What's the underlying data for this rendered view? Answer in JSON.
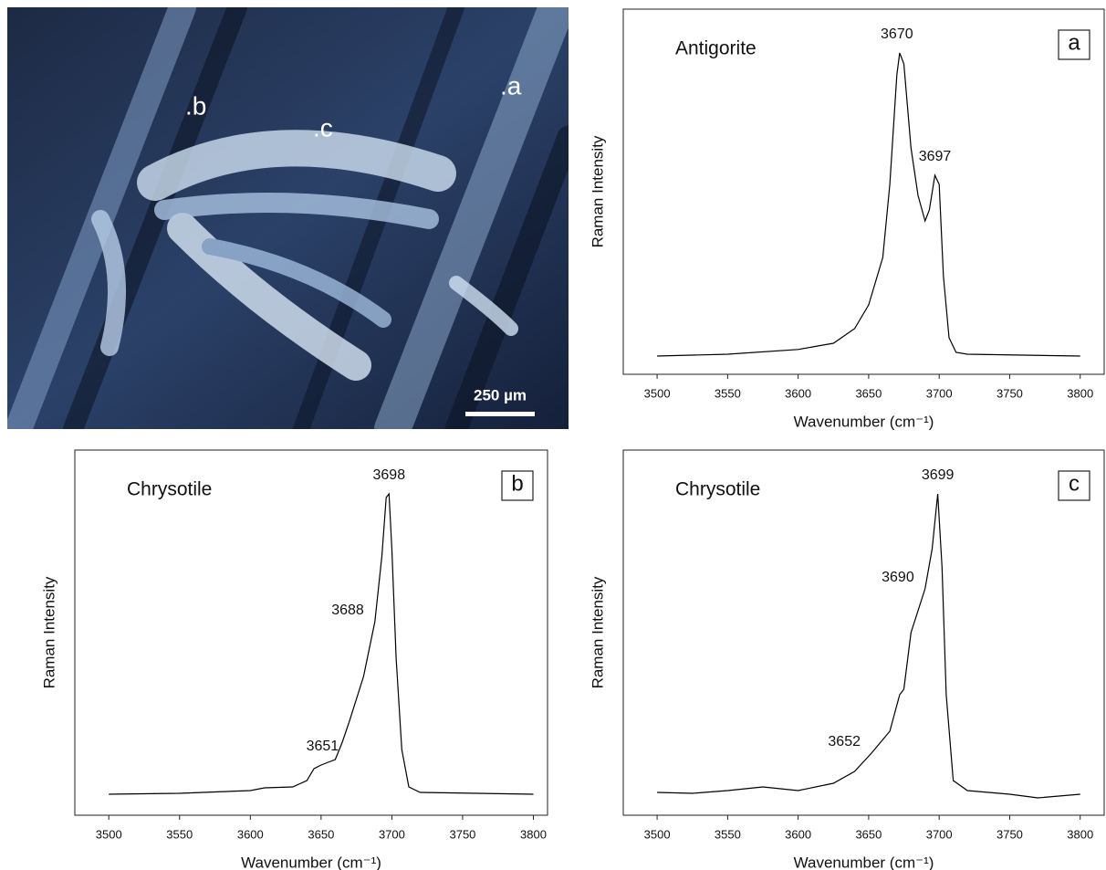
{
  "image": {
    "points": [
      ".a",
      ".b",
      ".c"
    ],
    "scale_bar": "250 µm"
  },
  "chart_data": [
    {
      "type": "line",
      "title": "Antigorite",
      "panel_label": "a",
      "x_label": "Wavenumber (cm⁻¹)",
      "y_label": "Raman Intensity",
      "xlim": [
        3476,
        3817
      ],
      "xticks": [
        3500,
        3550,
        3600,
        3650,
        3700,
        3750,
        3800
      ],
      "ylim": [
        0,
        100
      ],
      "x": [
        3500,
        3550,
        3600,
        3625,
        3640,
        3650,
        3660,
        3665,
        3670,
        3672,
        3675,
        3680,
        3685,
        3690,
        3693,
        3697,
        3700,
        3703,
        3707,
        3712,
        3720,
        3800
      ],
      "series": [
        {
          "color": "#000000",
          "values": [
            5,
            5.5,
            6.8,
            8.5,
            12.5,
            19,
            32,
            52,
            82,
            88,
            85,
            62,
            49,
            42,
            45,
            54.5,
            52,
            27,
            10,
            6,
            5.5,
            5
          ]
        }
      ],
      "annotations": [
        {
          "text": "3670",
          "x": 3670,
          "y": 88,
          "position": "above"
        },
        {
          "text": "3697",
          "x": 3697,
          "y": 54.5,
          "position": "above"
        }
      ]
    },
    {
      "type": "line",
      "title": "Chrysotile",
      "panel_label": "b",
      "x_label": "Wavenumber (cm⁻¹)",
      "y_label": "Raman Intensity",
      "xlim": [
        3476,
        3810
      ],
      "xticks": [
        3500,
        3550,
        3600,
        3650,
        3700,
        3750,
        3800
      ],
      "ylim": [
        0,
        100
      ],
      "x": [
        3500,
        3550,
        3600,
        3610,
        3630,
        3640,
        3645,
        3650,
        3655,
        3660,
        3665,
        3670,
        3680,
        3688,
        3693,
        3696,
        3698,
        3700,
        3703,
        3707,
        3712,
        3720,
        3800
      ],
      "series": [
        {
          "color": "#000000",
          "values": [
            5.75,
            6,
            6.75,
            7.5,
            7.75,
            9.5,
            12.75,
            13.75,
            14.5,
            15.25,
            20,
            25.75,
            38,
            53,
            71,
            87,
            88,
            73,
            43,
            18,
            7.75,
            6.25,
            5.75
          ]
        }
      ],
      "annotations": [
        {
          "text": "3698",
          "x": 3698,
          "y": 88,
          "position": "above"
        },
        {
          "text": "3688",
          "x": 3688,
          "y": 53,
          "position": "left"
        },
        {
          "text": "3651",
          "x": 3651,
          "y": 13.75,
          "position": "above"
        }
      ]
    },
    {
      "type": "line",
      "title": "Chrysotile",
      "panel_label": "c",
      "x_label": "Wavenumber (cm⁻¹)",
      "y_label": "Raman Intensity",
      "xlim": [
        3476,
        3817
      ],
      "xticks": [
        3500,
        3550,
        3600,
        3650,
        3700,
        3750,
        3800
      ],
      "ylim": [
        0,
        100
      ],
      "x": [
        3500,
        3525,
        3550,
        3575,
        3600,
        3625,
        3640,
        3652,
        3665,
        3672,
        3675,
        3680,
        3690,
        3695,
        3699,
        3702,
        3705,
        3710,
        3720,
        3750,
        3770,
        3800
      ],
      "series": [
        {
          "color": "#000000",
          "values": [
            6.25,
            6,
            6.75,
            7.75,
            6.75,
            8.75,
            12,
            17,
            23,
            33,
            34.5,
            50,
            62,
            73,
            88,
            68,
            33,
            9.5,
            6.75,
            5.75,
            4.75,
            5.75
          ]
        }
      ],
      "annotations": [
        {
          "text": "3699",
          "x": 3699,
          "y": 88,
          "position": "above"
        },
        {
          "text": "3690",
          "x": 3690,
          "y": 62,
          "position": "left"
        },
        {
          "text": "3652",
          "x": 3652,
          "y": 17,
          "position": "left"
        }
      ]
    }
  ]
}
